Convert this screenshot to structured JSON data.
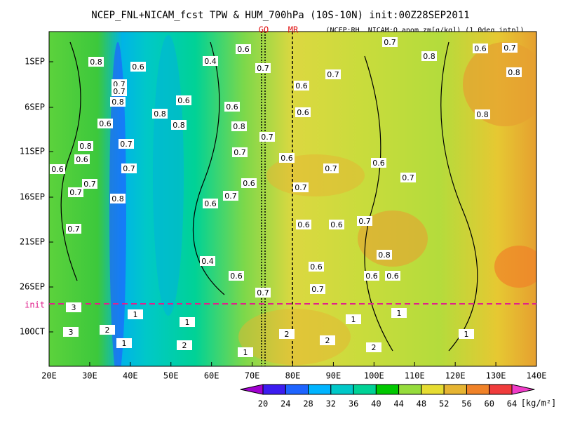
{
  "title": "NCEP_FNL+NICAM_fcst TPW & HUM_700hPa (10S-10N) init:00Z28SEP2011",
  "subtitle": "(NCEP:RH, NICAM:Q anom zm[g/kg]) (1.0deg intpl)",
  "markers": [
    "GO",
    "MR"
  ],
  "init_label": "init",
  "chart_data": {
    "type": "contourf",
    "xlim": [
      20,
      140
    ],
    "xticks": [
      {
        "value": 20,
        "label": "20E"
      },
      {
        "value": 30,
        "label": "30E"
      },
      {
        "value": 40,
        "label": "40E"
      },
      {
        "value": 50,
        "label": "50E"
      },
      {
        "value": 60,
        "label": "60E"
      },
      {
        "value": 70,
        "label": "70E"
      },
      {
        "value": 80,
        "label": "80E"
      },
      {
        "value": 90,
        "label": "90E"
      },
      {
        "value": 100,
        "label": "100E"
      },
      {
        "value": 110,
        "label": "110E"
      },
      {
        "value": 120,
        "label": "120E"
      },
      {
        "value": 130,
        "label": "130E"
      },
      {
        "value": 140,
        "label": "140E"
      }
    ],
    "y_tick_labels": [
      "1SEP",
      "6SEP",
      "11SEP",
      "16SEP",
      "21SEP",
      "26SEP",
      "10OCT"
    ],
    "colorbar": {
      "levels": [
        20,
        24,
        28,
        32,
        36,
        40,
        44,
        48,
        52,
        56,
        60,
        64
      ],
      "colors": [
        "#a000d0",
        "#3c1cf0",
        "#1e64ff",
        "#00b4ff",
        "#00c8c8",
        "#00d296",
        "#00c800",
        "#96dc3c",
        "#e6dc32",
        "#e6b432",
        "#f08228",
        "#f03c3c",
        "#f03cc8"
      ],
      "unit": "[kg/m²]"
    },
    "contour_labels": [
      "0.8",
      "0.6",
      "0.4",
      "0.6",
      "0.7",
      "0.6",
      "0.7",
      "0.8",
      "0.7",
      "0.7",
      "0.8",
      "0.6",
      "0.6",
      "0.6",
      "0.7",
      "0.8",
      "0.6",
      "0.7",
      "0.6",
      "0.8",
      "0.8",
      "0.8",
      "0.7",
      "0.6",
      "0.7",
      "0.6",
      "0.7",
      "0.8",
      "0.8",
      "0.6",
      "0.7",
      "0.7",
      "0.7",
      "0.6",
      "0.6",
      "0.7",
      "0.7",
      "0.6",
      "0.7",
      "0.7",
      "0.8",
      "0.7",
      "0.6",
      "0.7",
      "0.6",
      "0.4",
      "0.6",
      "0.6",
      "0.7",
      "0.6",
      "0.6",
      "0.8",
      "0.7",
      "3",
      "1",
      "1",
      "2",
      "1",
      "2",
      "1",
      "3",
      "2",
      "1",
      "2",
      "2",
      "1",
      "1"
    ]
  }
}
